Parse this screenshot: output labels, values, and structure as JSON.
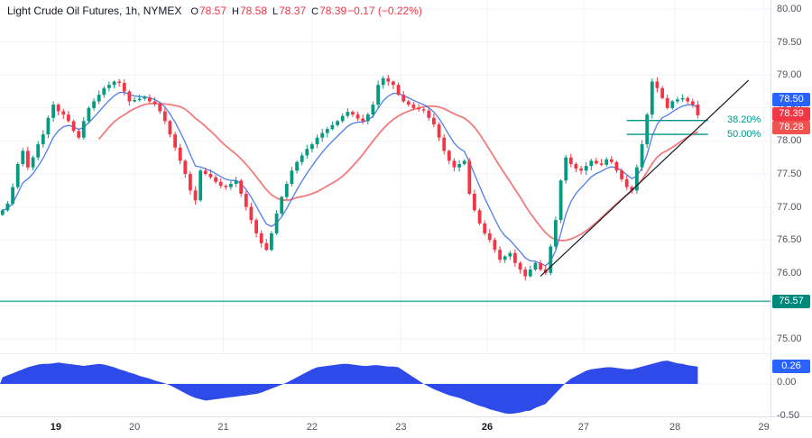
{
  "header": {
    "symbol_title": "Light Crude Oil Futures, 1h, NYMEX",
    "ohlc": {
      "o_label": "O",
      "o_value": "78.57",
      "h_label": "H",
      "h_value": "78.58",
      "l_label": "L",
      "l_value": "78.37",
      "c_label": "C",
      "c_value": "78.39",
      "change": "−0.17 (−0.22%)"
    }
  },
  "colors": {
    "up": "#089981",
    "down": "#F23645",
    "ma_fast": "#3D6FE8",
    "ma_slow": "#F26D6D",
    "level_line": "#26A69A",
    "fib": "#009688",
    "osc_fill": "#2E4BEA",
    "trendline": "#131722",
    "grid": "#f0f3fa",
    "badge_last": "#F23645",
    "badge_ma_fast": "#2962FF",
    "badge_ma_slow": "#EF5350",
    "badge_level": "#00897B",
    "badge_osc": "#2962FF"
  },
  "badges": {
    "ma_fast": "78.50",
    "last_price": "78.39",
    "ma_slow": "78.28",
    "level": "75.57",
    "oscillator": "0.26"
  },
  "price_axis": {
    "labels": [
      {
        "label": "80.00",
        "price": 80.0
      },
      {
        "label": "79.50",
        "price": 79.5
      },
      {
        "label": "79.00",
        "price": 79.0
      },
      {
        "label": "78.50",
        "price": 78.5
      },
      {
        "label": "78.00",
        "price": 78.0
      },
      {
        "label": "77.50",
        "price": 77.5
      },
      {
        "label": "77.00",
        "price": 77.0
      },
      {
        "label": "76.50",
        "price": 76.5
      },
      {
        "label": "76.00",
        "price": 76.0
      },
      {
        "label": "75.50",
        "price": 75.5
      },
      {
        "label": "75.00",
        "price": 75.0
      }
    ]
  },
  "osc_axis": {
    "labels": [
      {
        "label": "0.00",
        "value": 0.0
      },
      {
        "label": "-0.50",
        "value": -0.5
      }
    ]
  },
  "chart_data": [
    {
      "type": "candlestick",
      "title": "Light Crude Oil Futures, 1h, NYMEX",
      "ylim": [
        75.0,
        80.0
      ],
      "closes": [
        76.95,
        77.05,
        77.3,
        77.65,
        77.85,
        77.6,
        77.75,
        77.95,
        78.1,
        78.35,
        78.55,
        78.45,
        78.4,
        78.3,
        78.15,
        78.05,
        78.3,
        78.5,
        78.6,
        78.7,
        78.8,
        78.85,
        78.9,
        78.88,
        78.75,
        78.6,
        78.62,
        78.64,
        78.66,
        78.6,
        78.56,
        78.45,
        78.3,
        78.1,
        77.9,
        77.7,
        77.5,
        77.25,
        77.1,
        77.55,
        77.5,
        77.45,
        77.38,
        77.32,
        77.3,
        77.35,
        77.4,
        77.2,
        77.0,
        76.8,
        76.6,
        76.45,
        76.35,
        76.6,
        76.9,
        77.15,
        77.35,
        77.55,
        77.68,
        77.78,
        77.88,
        77.95,
        78.05,
        78.12,
        78.18,
        78.24,
        78.3,
        78.38,
        78.44,
        78.4,
        78.34,
        78.3,
        78.4,
        78.55,
        78.85,
        78.95,
        78.9,
        78.85,
        78.7,
        78.6,
        78.55,
        78.5,
        78.48,
        78.46,
        78.35,
        78.25,
        78.05,
        77.85,
        77.7,
        77.6,
        77.65,
        77.7,
        77.2,
        76.95,
        76.75,
        76.6,
        76.5,
        76.35,
        76.2,
        76.25,
        76.3,
        76.15,
        76.05,
        75.95,
        76.05,
        76.15,
        76.05,
        76.0,
        76.4,
        76.8,
        77.4,
        77.75,
        77.65,
        77.58,
        77.55,
        77.62,
        77.7,
        77.66,
        77.64,
        77.72,
        77.68,
        77.55,
        77.42,
        77.3,
        77.25,
        77.6,
        77.95,
        78.4,
        78.9,
        78.8,
        78.65,
        78.5,
        78.6,
        78.63,
        78.65,
        78.6,
        78.55,
        78.39
      ],
      "x_day_labels": [
        {
          "label": "19",
          "index": 10.5,
          "bold": true
        },
        {
          "label": "20",
          "index": 26,
          "bold": false
        },
        {
          "label": "21",
          "index": 43.5,
          "bold": false
        },
        {
          "label": "22",
          "index": 61,
          "bold": false
        },
        {
          "label": "23",
          "index": 78.5,
          "bold": false
        },
        {
          "label": "26",
          "index": 95.5,
          "bold": true
        },
        {
          "label": "27",
          "index": 114.5,
          "bold": false
        },
        {
          "label": "28",
          "index": 132.5,
          "bold": false
        },
        {
          "label": "29",
          "index": 150,
          "bold": false
        }
      ],
      "overlays": {
        "ma_fast": {
          "period": 7,
          "last_value": 78.5
        },
        "ma_slow": {
          "period": 20,
          "last_value": 78.28
        },
        "horizontal_line": {
          "price": 75.57
        },
        "trendline": {
          "from": {
            "index": 106,
            "price": 75.95
          },
          "to": {
            "index": 147,
            "price": 78.92
          }
        },
        "fib_retracement": {
          "x_from_index": 123,
          "x_to_index": 139,
          "levels": [
            {
              "label": "38.20%",
              "price": 78.31
            },
            {
              "label": "50.00%",
              "price": 78.1
            }
          ]
        }
      }
    },
    {
      "type": "area",
      "name": "oscillator",
      "ylim": [
        -0.6,
        0.45
      ],
      "last_value": 0.26,
      "values": [
        0.1,
        0.13,
        0.16,
        0.19,
        0.22,
        0.25,
        0.27,
        0.29,
        0.3,
        0.3,
        0.31,
        0.32,
        0.31,
        0.3,
        0.29,
        0.28,
        0.27,
        0.28,
        0.29,
        0.3,
        0.29,
        0.27,
        0.25,
        0.22,
        0.2,
        0.17,
        0.15,
        0.12,
        0.1,
        0.08,
        0.05,
        0.03,
        0.01,
        -0.02,
        -0.06,
        -0.1,
        -0.14,
        -0.18,
        -0.21,
        -0.23,
        -0.25,
        -0.24,
        -0.23,
        -0.22,
        -0.21,
        -0.2,
        -0.19,
        -0.18,
        -0.17,
        -0.16,
        -0.15,
        -0.13,
        -0.1,
        -0.07,
        -0.04,
        -0.01,
        0.02,
        0.06,
        0.1,
        0.14,
        0.18,
        0.22,
        0.25,
        0.26,
        0.27,
        0.28,
        0.29,
        0.3,
        0.3,
        0.29,
        0.28,
        0.27,
        0.27,
        0.28,
        0.28,
        0.27,
        0.26,
        0.26,
        0.25,
        0.2,
        0.15,
        0.1,
        0.05,
        0.0,
        -0.04,
        -0.08,
        -0.11,
        -0.14,
        -0.17,
        -0.19,
        -0.21,
        -0.24,
        -0.27,
        -0.3,
        -0.33,
        -0.35,
        -0.38,
        -0.4,
        -0.42,
        -0.44,
        -0.45,
        -0.44,
        -0.43,
        -0.41,
        -0.4,
        -0.36,
        -0.33,
        -0.3,
        -0.22,
        -0.14,
        -0.06,
        0.02,
        0.08,
        0.12,
        0.16,
        0.2,
        0.22,
        0.23,
        0.24,
        0.25,
        0.25,
        0.24,
        0.23,
        0.22,
        0.22,
        0.24,
        0.26,
        0.28,
        0.3,
        0.32,
        0.34,
        0.35,
        0.33,
        0.31,
        0.3,
        0.28,
        0.27,
        0.26
      ]
    }
  ]
}
